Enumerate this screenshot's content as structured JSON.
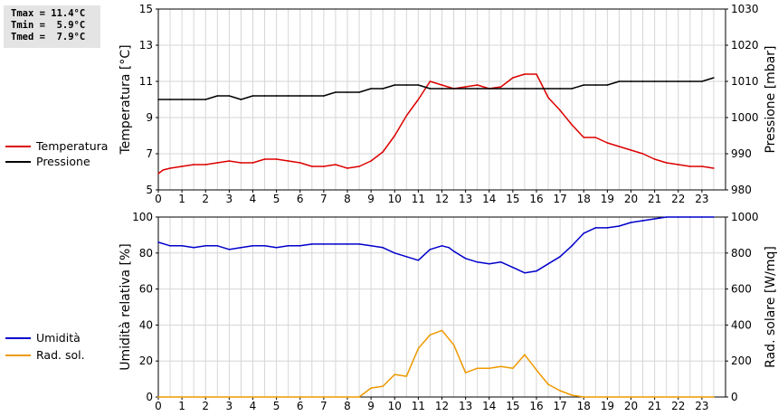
{
  "stats": {
    "tmax": "Tmax = 11.4°C",
    "tmin": "Tmin =  5.9°C",
    "tmed": "Tmed =  7.9°C"
  },
  "chart_data": [
    {
      "type": "line",
      "ylabel": "Temperatura [°C]",
      "y2label": "Pressione [mbar]",
      "ylim": [
        5,
        15
      ],
      "yticks": [
        "5",
        "7",
        "9",
        "11",
        "13",
        "15"
      ],
      "y2lim": [
        980,
        1030
      ],
      "y2ticks": [
        "980",
        "990",
        "1000",
        "1010",
        "1020",
        "1030"
      ],
      "xlim": [
        0,
        24
      ],
      "xticks": [
        "0",
        "1",
        "2",
        "3",
        "4",
        "5",
        "6",
        "7",
        "8",
        "9",
        "10",
        "11",
        "12",
        "13",
        "14",
        "15",
        "16",
        "17",
        "18",
        "19",
        "20",
        "21",
        "22",
        "23"
      ],
      "grid": true,
      "legend": "left",
      "series": [
        {
          "name": "Temperatura",
          "color": "#dd0000",
          "axis": "left",
          "x": [
            0,
            0.2,
            0.5,
            1,
            1.5,
            2,
            2.5,
            3,
            3.5,
            4,
            4.5,
            5,
            5.5,
            6,
            6.5,
            7,
            7.5,
            8,
            8.5,
            9,
            9.5,
            10,
            10.5,
            11,
            11.5,
            12,
            12.5,
            13,
            13.5,
            14,
            14.5,
            15,
            15.5,
            16,
            16.5,
            17,
            17.5,
            18,
            18.5,
            19,
            19.5,
            20,
            20.5,
            21,
            21.5,
            22,
            22.5,
            23,
            23.5
          ],
          "values": [
            5.9,
            6.1,
            6.2,
            6.3,
            6.4,
            6.4,
            6.5,
            6.6,
            6.5,
            6.5,
            6.7,
            6.7,
            6.6,
            6.5,
            6.3,
            6.3,
            6.4,
            6.2,
            6.3,
            6.6,
            7.1,
            8.0,
            9.1,
            10.0,
            11.0,
            10.8,
            10.6,
            10.7,
            10.8,
            10.6,
            10.7,
            11.2,
            11.4,
            11.4,
            10.1,
            9.4,
            8.6,
            7.9,
            7.9,
            7.6,
            7.4,
            7.2,
            7.0,
            6.7,
            6.5,
            6.4,
            6.3,
            6.3,
            6.2
          ]
        },
        {
          "name": "Pressione",
          "color": "#000000",
          "axis": "right",
          "x": [
            0,
            0.5,
            1,
            1.5,
            2,
            2.5,
            3,
            3.5,
            4,
            4.5,
            5,
            5.5,
            6,
            6.5,
            7,
            7.5,
            8,
            8.5,
            9,
            9.5,
            10,
            10.5,
            11,
            11.5,
            12,
            12.5,
            13,
            13.5,
            14,
            14.5,
            15,
            15.5,
            16,
            16.5,
            17,
            17.5,
            18,
            18.5,
            19,
            19.5,
            20,
            20.5,
            21,
            21.5,
            22,
            22.5,
            23,
            23.5
          ],
          "values": [
            1005,
            1005,
            1005,
            1005,
            1005,
            1006,
            1006,
            1005,
            1006,
            1006,
            1006,
            1006,
            1006,
            1006,
            1006,
            1007,
            1007,
            1007,
            1008,
            1008,
            1009,
            1009,
            1009,
            1008,
            1008,
            1008,
            1008,
            1008,
            1008,
            1008,
            1008,
            1008,
            1008,
            1008,
            1008,
            1008,
            1009,
            1009,
            1009,
            1010,
            1010,
            1010,
            1010,
            1010,
            1010,
            1010,
            1010,
            1011
          ]
        }
      ]
    },
    {
      "type": "line",
      "ylabel": "Umidità relativa [%]",
      "y2label": "Rad. solare [W/mq]",
      "ylim": [
        0,
        100
      ],
      "yticks": [
        "0",
        "20",
        "40",
        "60",
        "80",
        "100"
      ],
      "y2lim": [
        0,
        1000
      ],
      "y2ticks": [
        "0",
        "200",
        "400",
        "600",
        "800",
        "1000"
      ],
      "xlim": [
        0,
        24
      ],
      "xticks": [
        "0",
        "1",
        "2",
        "3",
        "4",
        "5",
        "6",
        "7",
        "8",
        "9",
        "10",
        "11",
        "12",
        "13",
        "14",
        "15",
        "16",
        "17",
        "18",
        "19",
        "20",
        "21",
        "22",
        "23"
      ],
      "grid": true,
      "legend": "left",
      "series": [
        {
          "name": "Umidità",
          "color": "#0000cc",
          "axis": "left",
          "x": [
            0,
            0.5,
            1,
            1.5,
            2,
            2.5,
            3,
            3.5,
            4,
            4.5,
            5,
            5.5,
            6,
            6.5,
            7,
            7.5,
            8,
            8.5,
            9,
            9.5,
            10,
            10.5,
            11,
            11.5,
            12,
            12.3,
            12.5,
            13,
            13.5,
            14,
            14.5,
            15,
            15.5,
            16,
            16.5,
            17,
            17.5,
            18,
            18.5,
            19,
            19.5,
            20,
            20.5,
            21,
            21.5,
            22,
            22.5,
            23,
            23.5
          ],
          "values": [
            86,
            84,
            84,
            83,
            84,
            84,
            82,
            83,
            84,
            84,
            83,
            84,
            84,
            85,
            85,
            85,
            85,
            85,
            84,
            83,
            80,
            78,
            76,
            82,
            84,
            83,
            81,
            77,
            75,
            74,
            75,
            72,
            69,
            70,
            74,
            78,
            84,
            91,
            94,
            94,
            95,
            97,
            98,
            99,
            100,
            100,
            100,
            100,
            100
          ]
        },
        {
          "name": "Rad. sol.",
          "color": "#ee9900",
          "axis": "right",
          "x": [
            0,
            1,
            2,
            3,
            4,
            5,
            6,
            7,
            8,
            8.5,
            9,
            9.5,
            10,
            10.5,
            11,
            11.5,
            12,
            12.5,
            13,
            13.5,
            14,
            14.5,
            15,
            15.5,
            16,
            16.5,
            17,
            17.5,
            18,
            19,
            20,
            21,
            22,
            23,
            23.5
          ],
          "values": [
            0,
            0,
            0,
            0,
            0,
            0,
            0,
            0,
            0,
            0,
            50,
            60,
            125,
            115,
            270,
            345,
            370,
            290,
            135,
            160,
            160,
            170,
            160,
            235,
            150,
            70,
            35,
            10,
            0,
            0,
            0,
            0,
            0,
            0,
            0
          ]
        }
      ]
    }
  ]
}
